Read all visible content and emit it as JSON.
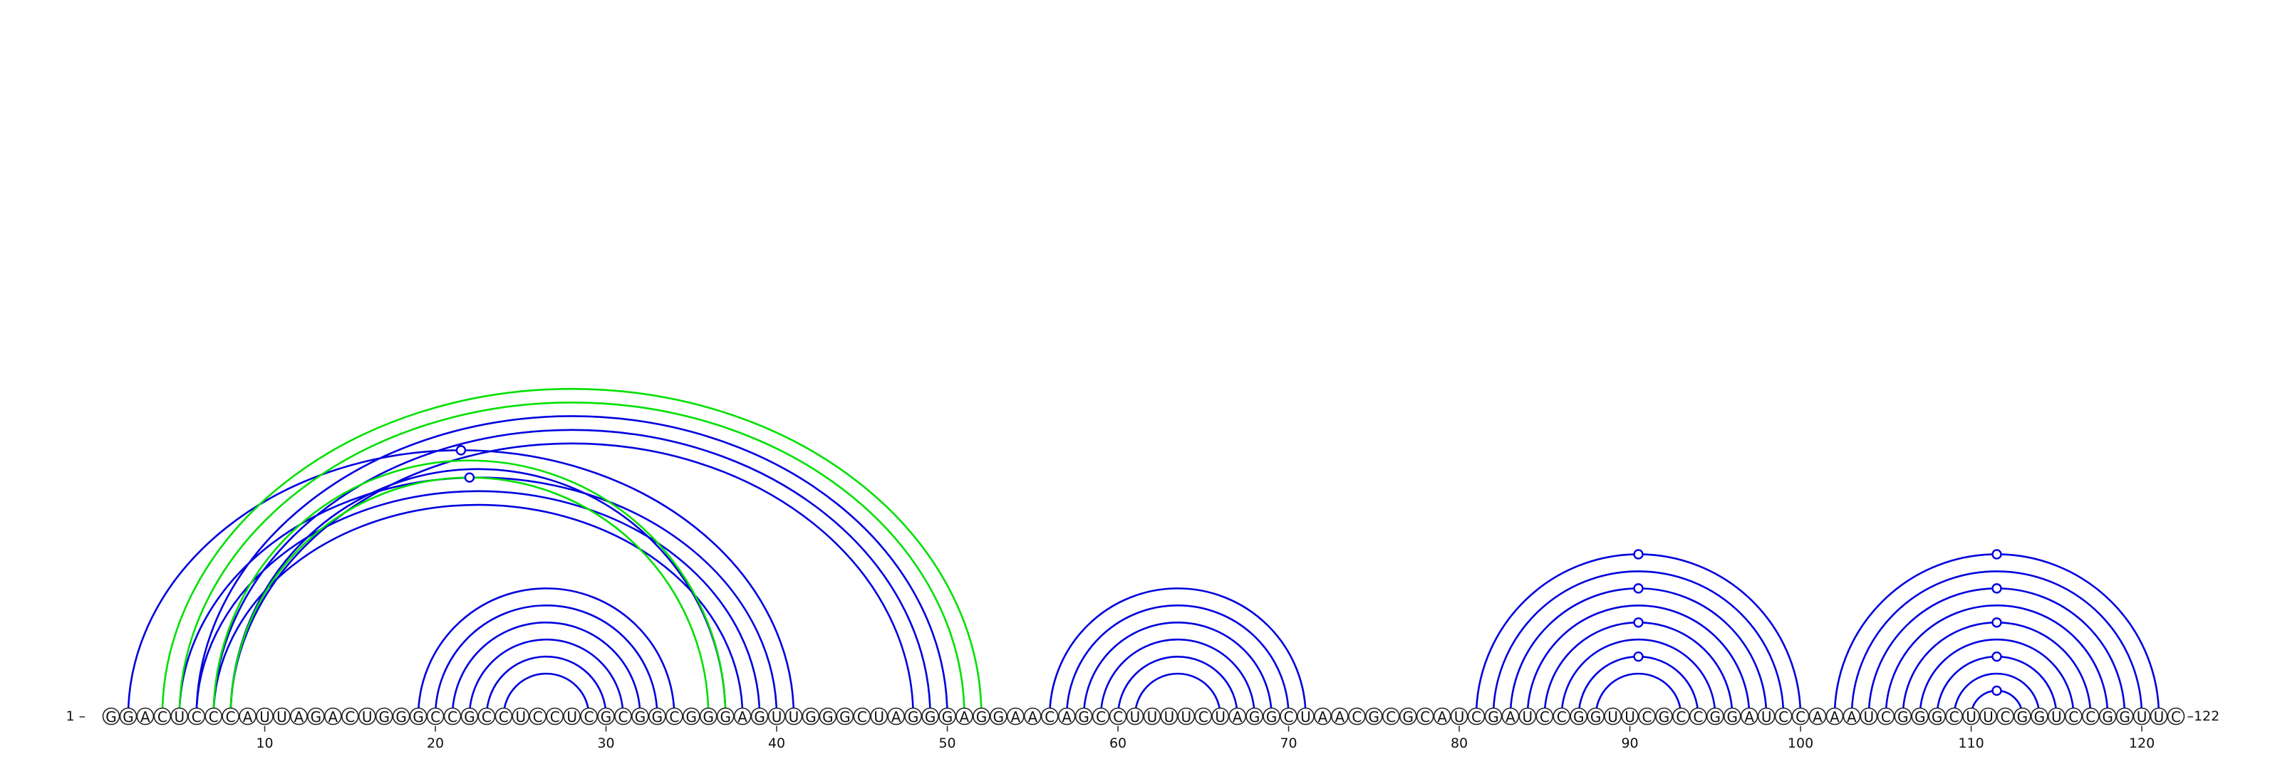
{
  "sequence": "GGACUCCCAUUAGACUGGGCCGCCUCCUCGCGGCGGGAGUUGGGCUAGGGAGGAACAGCCUUUUCUAGGCUAACGCGCAUCGAUCCGGUUCGCCGGAUCCAAAUCGGGCUUCGGUCCGGUUC",
  "start_label": "1 –",
  "end_label": "–122",
  "ticks": [
    "10",
    "20",
    "30",
    "40",
    "50",
    "60",
    "70",
    "80",
    "90",
    "100",
    "110",
    "120"
  ],
  "colors": {
    "pair": "#0000e0",
    "alt_pair": "#00e000"
  },
  "helices": [
    {
      "start": 2,
      "end": 41,
      "size": 1,
      "color": "#0000e0"
    },
    {
      "start": 4,
      "end": 52,
      "size": 1,
      "color": "#00e000"
    },
    {
      "start": 5,
      "end": 40,
      "size": 1,
      "color": "#0000e0"
    },
    {
      "start": 5,
      "end": 51,
      "size": 1,
      "color": "#00e000"
    },
    {
      "start": 6,
      "end": 39,
      "size": 1,
      "color": "#0000e0"
    },
    {
      "start": 6,
      "end": 50,
      "size": 3,
      "color": "#0000e0"
    },
    {
      "start": 7,
      "end": 38,
      "size": 2,
      "color": "#0000e0"
    },
    {
      "start": 7,
      "end": 37,
      "size": 1,
      "color": "#00e000"
    },
    {
      "start": 8,
      "end": 36,
      "size": 1,
      "color": "#00e000"
    },
    {
      "start": 19,
      "end": 34,
      "size": 6,
      "color": "#0000e0"
    },
    {
      "start": 56,
      "end": 71,
      "size": 6,
      "color": "#0000e0"
    },
    {
      "start": 81,
      "end": 100,
      "size": 8,
      "color": "#0000e0"
    },
    {
      "start": 102,
      "end": 121,
      "size": 9,
      "color": "#0000e0"
    }
  ],
  "marked_positions": [
    21,
    90,
    111
  ]
}
